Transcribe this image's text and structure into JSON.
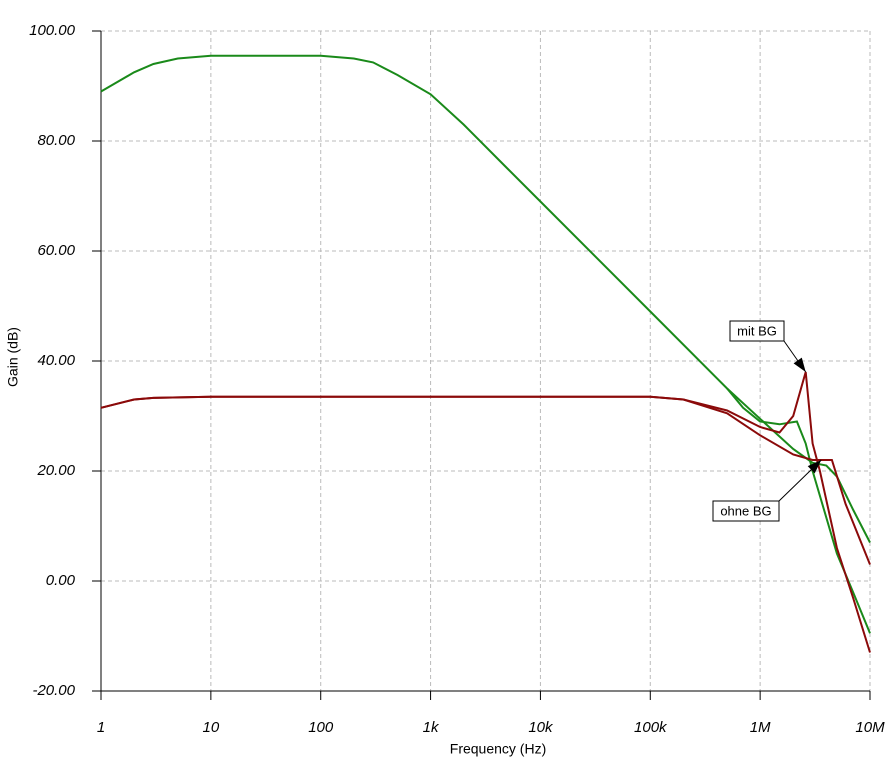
{
  "chart_data": {
    "type": "line",
    "x_label": "Frequency (Hz)",
    "y_label": "Gain (dB)",
    "x_scale": "log",
    "grid": true,
    "xlim": [
      1,
      10000000
    ],
    "xticks": [
      1,
      10,
      100,
      {
        "value": 1000,
        "label": "1k"
      },
      {
        "value": 10000,
        "label": "10k"
      },
      {
        "value": 100000,
        "label": "100k"
      },
      {
        "value": 1000000,
        "label": "1M"
      },
      {
        "value": 10000000,
        "label": "10M"
      }
    ],
    "ylim": [
      -20,
      100
    ],
    "yticks": [
      {
        "value": -20,
        "label": "-20.00"
      },
      {
        "value": 0,
        "label": "0.00"
      },
      {
        "value": 20,
        "label": "20.00"
      },
      {
        "value": 40,
        "label": "40.00"
      },
      {
        "value": 60,
        "label": "60.00"
      },
      {
        "value": 80,
        "label": "80.00"
      },
      {
        "value": 100,
        "label": "100.00"
      }
    ],
    "series": [
      {
        "color": "#1a8a1a",
        "x": [
          1,
          2,
          3,
          5,
          10,
          100,
          200,
          300,
          500,
          1000,
          2000,
          5000,
          10000,
          100000,
          500000,
          1000000,
          2000000,
          3000000,
          4000000,
          5000000,
          7000000,
          10000000
        ],
        "values": [
          89,
          92.5,
          94,
          95,
          95.5,
          95.5,
          95,
          94.3,
          92,
          88.5,
          83,
          75,
          69,
          49,
          35,
          29.5,
          24,
          21.5,
          21,
          19,
          13,
          7
        ]
      },
      {
        "color": "#1a8a1a",
        "x": [
          500000,
          700000,
          1000000,
          1500000,
          2160000,
          2600000,
          3000000,
          5000000,
          7000000,
          10000000
        ],
        "values": [
          35,
          31.5,
          29,
          28.5,
          29,
          25,
          20,
          5,
          -2,
          -9.5
        ]
      },
      {
        "color": "#8b0a0a",
        "x": [
          1,
          2,
          3,
          10,
          100000,
          200000,
          500000,
          1000000,
          2000000,
          3000000,
          4500000,
          6000000,
          10000000
        ],
        "values": [
          31.5,
          33,
          33.3,
          33.5,
          33.5,
          33,
          30.5,
          26.5,
          23,
          22,
          22,
          14,
          3
        ]
      },
      {
        "color": "#8b0a0a",
        "x": [
          1,
          2,
          3,
          10,
          100000,
          200000,
          500000,
          1000000,
          1500000,
          2000000,
          2600000,
          3000000,
          3500000,
          5000000,
          7000000,
          10000000
        ],
        "values": [
          31.5,
          33,
          33.3,
          33.5,
          33.5,
          33,
          31,
          28,
          27,
          30,
          38,
          25,
          20,
          6,
          -3,
          -13
        ]
      }
    ],
    "annotations": [
      {
        "text": "mit BG",
        "x": 2600000,
        "y": 38
      },
      {
        "text": "ohne BG",
        "x": 3600000,
        "y": 22
      }
    ]
  }
}
